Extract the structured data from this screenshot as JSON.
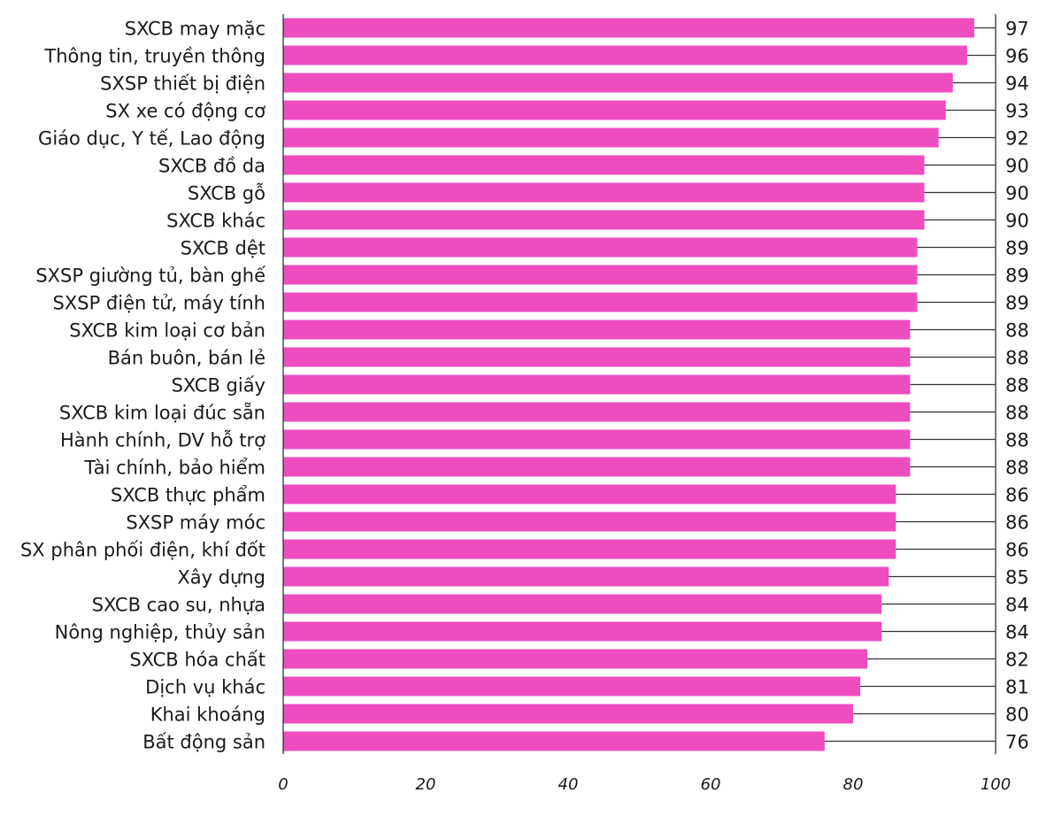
{
  "chart_data": {
    "type": "bar",
    "orientation": "horizontal",
    "bar_color": "#ee4dc0",
    "axis_color": "#333333",
    "categories": [
      "SXCB may mặc",
      "Thông tin, truyền thông",
      "SXSP thiết bị điện",
      "SX xe có động cơ",
      "Giáo dục, Y tế, Lao động",
      "SXCB đồ da",
      "SXCB gỗ",
      "SXCB khác",
      "SXCB dệt",
      "SXSP giường tủ, bàn ghế",
      "SXSP điện tử, máy tính",
      "SXCB kim loại cơ bản",
      "Bán buôn, bán lẻ",
      "SXCB giấy",
      "SXCB kim loại đúc sẵn",
      "Hành chính, DV hỗ trợ",
      "Tài chính, bảo hiểm",
      "SXCB thực phẩm",
      "SXSP máy móc",
      "SX phân phối điện, khí đốt",
      "Xây dựng",
      "SXCB cao su, nhựa",
      "Nông nghiệp, thủy sản",
      "SXCB hóa chất",
      "Dịch vụ khác",
      "Khai khoáng",
      "Bất động sản"
    ],
    "values": [
      97,
      96,
      94,
      93,
      92,
      90,
      90,
      90,
      89,
      89,
      89,
      88,
      88,
      88,
      88,
      88,
      88,
      86,
      86,
      86,
      85,
      84,
      84,
      82,
      81,
      80,
      76
    ],
    "value_labels": [
      "97",
      "96",
      "94",
      "93",
      "92",
      "90",
      "90",
      "90",
      "89",
      "89",
      "89",
      "88",
      "88",
      "88",
      "88",
      "88",
      "88",
      "86",
      "86",
      "86",
      "85",
      "84",
      "84",
      "82",
      "81",
      "80",
      "76"
    ],
    "xticks": [
      "0",
      "20",
      "40",
      "60",
      "80",
      "100"
    ],
    "xlim": [
      0,
      100
    ],
    "title": "",
    "xlabel": "",
    "ylabel": "",
    "grid": false,
    "legend": "none"
  }
}
